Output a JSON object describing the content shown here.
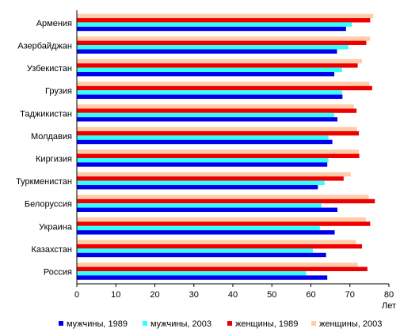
{
  "chart_data": {
    "type": "bar",
    "orientation": "horizontal",
    "categories": [
      "Армения",
      "Азербайджан",
      "Узбекистан",
      "Грузия",
      "Таджикистан",
      "Молдавия",
      "Киргизия",
      "Туркменистан",
      "Белоруссия",
      "Украина",
      "Казахстан",
      "Россия"
    ],
    "series": [
      {
        "name": "мужчины, 1989",
        "color": "#0000ee",
        "values": [
          69.0,
          66.7,
          66.0,
          68.1,
          66.8,
          65.5,
          64.2,
          61.8,
          66.8,
          66.1,
          63.9,
          64.2
        ]
      },
      {
        "name": "мужчины, 2003",
        "color": "#33ffff",
        "values": [
          70.5,
          69.6,
          68.0,
          68.0,
          66.0,
          64.5,
          64.5,
          63.5,
          62.7,
          62.3,
          60.5,
          58.8
        ]
      },
      {
        "name": "женщины, 1989",
        "color": "#ee0000",
        "values": [
          75.2,
          74.2,
          72.0,
          75.7,
          71.7,
          72.3,
          72.4,
          68.4,
          76.4,
          75.2,
          73.1,
          74.5
        ]
      },
      {
        "name": "женщины, 2003",
        "color": "#ffccaa",
        "values": [
          76.0,
          75.2,
          73.1,
          75.0,
          71.0,
          71.8,
          72.3,
          70.2,
          74.8,
          74.1,
          71.6,
          72.0
        ]
      }
    ],
    "xlim": [
      0,
      80
    ],
    "xticks": [
      0,
      10,
      20,
      30,
      40,
      50,
      60,
      70,
      80
    ],
    "xlabel": "Лет",
    "grid": false,
    "legend_position": "bottom"
  }
}
